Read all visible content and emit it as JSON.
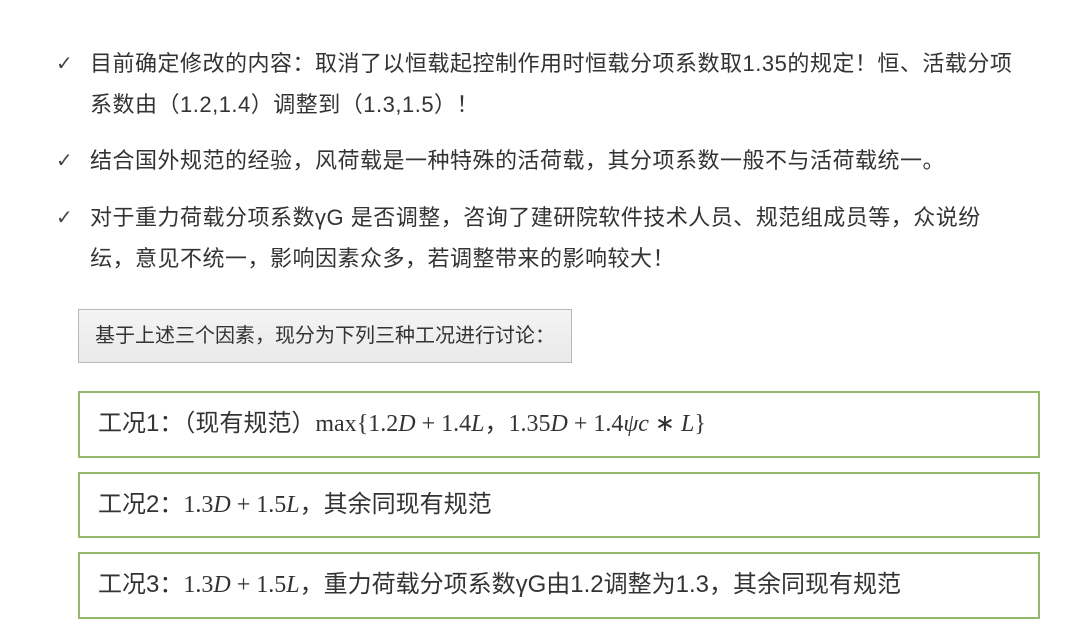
{
  "colors": {
    "text": "#333333",
    "background": "#ffffff",
    "noteBg1": "#f4f4f4",
    "noteBg2": "#e9e9e9",
    "noteBorder": "#b8b8b8",
    "caseBorder": "#93b96a"
  },
  "typography": {
    "bulletFontSize": 22,
    "noteFontSize": 20,
    "caseFontSize": 24,
    "lineHeight": 1.85
  },
  "bullets": [
    "目前确定修改的内容：取消了以恒载起控制作用时恒载分项系数取1.35的规定！恒、活载分项系数由（1.2,1.4）调整到（1.3,1.5）！",
    "结合国外规范的经验，风荷载是一种特殊的活荷载，其分项系数一般不与活荷载统一。",
    "对于重力荷载分项系数γG 是否调整，咨询了建研院软件技术人员、规范组成员等，众说纷纭，意见不统一，影响因素众多，若调整带来的影响较大！"
  ],
  "noteBox": "基于上述三个因素，现分为下列三种工况进行讨论：",
  "cases": {
    "case1": {
      "label": "工况1：（现有规范）",
      "maxWord": "max",
      "expr_open": "{",
      "expr_a": "1.2D + 1.4L",
      "sep": "，",
      "expr_b": "1.35D + 1.4ψc ∗ L",
      "expr_close": "}"
    },
    "case2": {
      "label": "工况2：",
      "expr": "1.3D + 1.5L",
      "tail": "，其余同现有规范"
    },
    "case3": {
      "label": "工况3：",
      "expr": "1.3D + 1.5L",
      "mid": "，重力荷载分项系数γG由1.2调整为1.3，其余同现有规范"
    }
  }
}
